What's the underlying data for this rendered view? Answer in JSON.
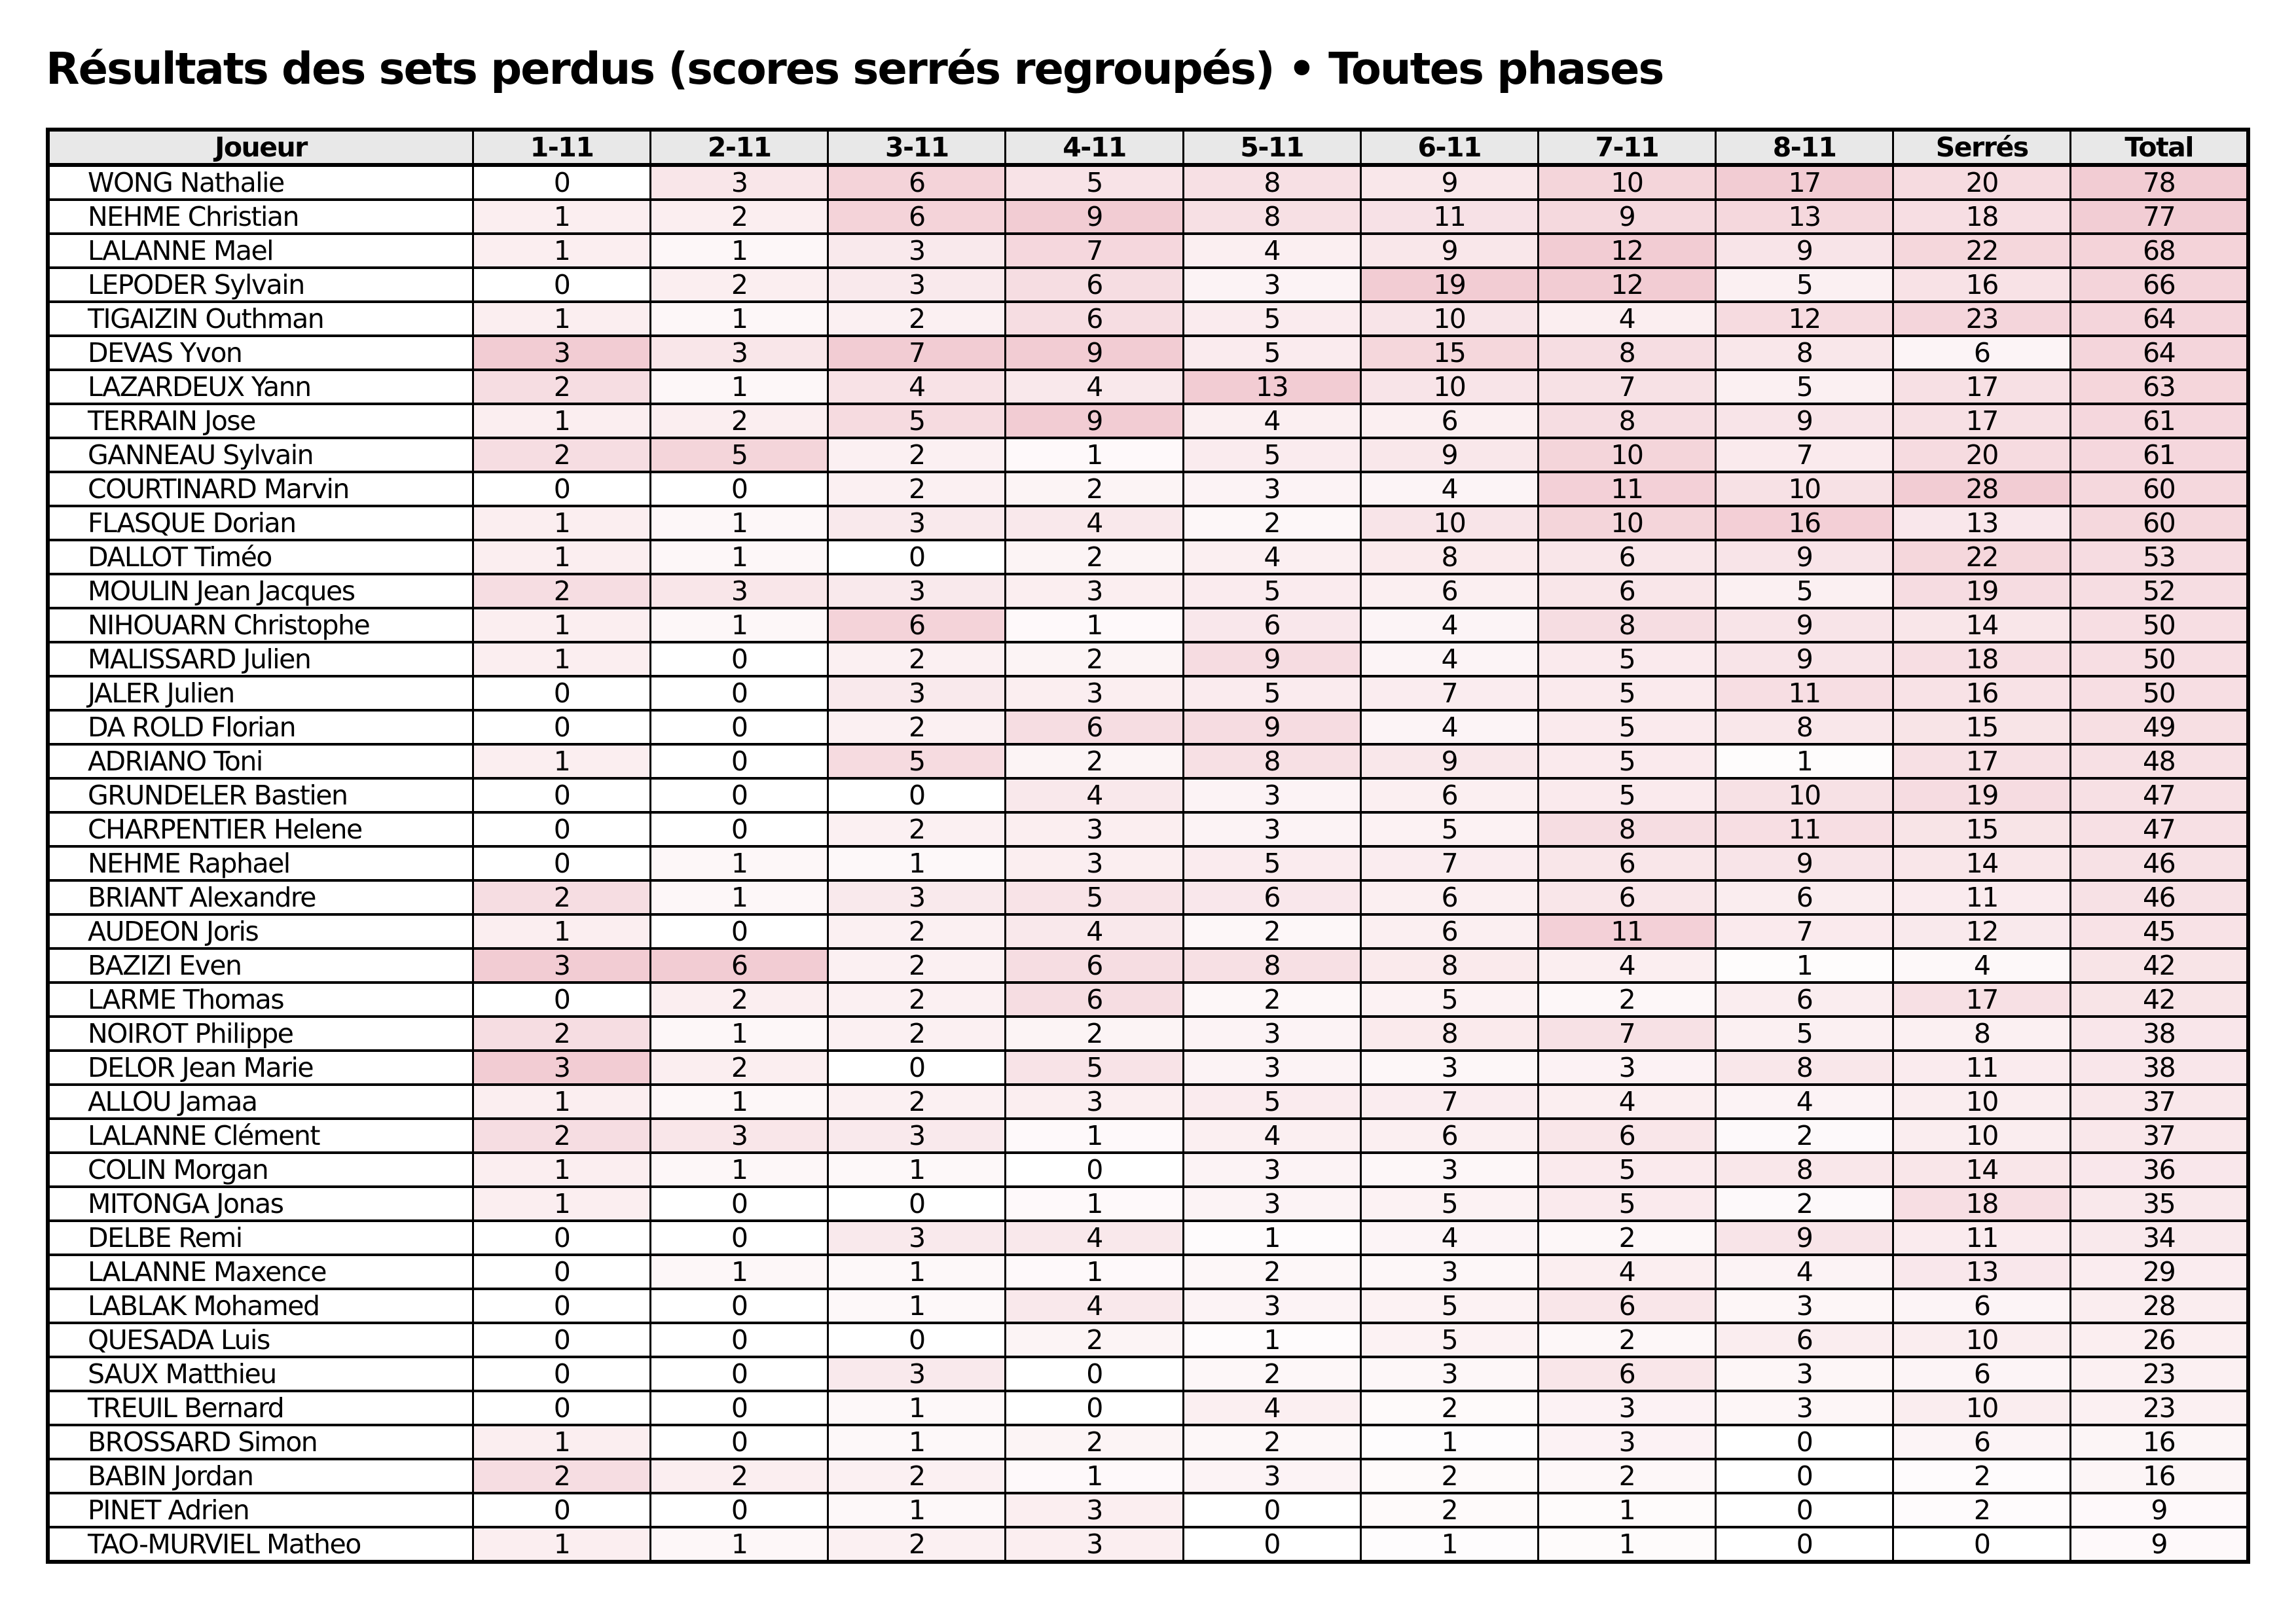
{
  "title": "Résultats des sets perdus (scores serrés regroupés) • Toutes phases",
  "colors": {
    "header_bg": "#e8e8e8",
    "heat_max": "#f2ccd3",
    "border": "#000000",
    "background": "#ffffff"
  },
  "chart_data": {
    "type": "table",
    "title": "Résultats des sets perdus (scores serrés regroupés) • Toutes phases",
    "columns": [
      "Joueur",
      "1-11",
      "2-11",
      "3-11",
      "4-11",
      "5-11",
      "6-11",
      "7-11",
      "8-11",
      "Serrés",
      "Total"
    ],
    "heatmap": "per-column, white to heat_max proportional to value / column max",
    "rows": [
      {
        "name": "WONG Nathalie",
        "values": [
          0,
          3,
          6,
          5,
          8,
          9,
          10,
          17,
          20,
          78
        ]
      },
      {
        "name": "NEHME Christian",
        "values": [
          1,
          2,
          6,
          9,
          8,
          11,
          9,
          13,
          18,
          77
        ]
      },
      {
        "name": "LALANNE Mael",
        "values": [
          1,
          1,
          3,
          7,
          4,
          9,
          12,
          9,
          22,
          68
        ]
      },
      {
        "name": "LEPODER Sylvain",
        "values": [
          0,
          2,
          3,
          6,
          3,
          19,
          12,
          5,
          16,
          66
        ]
      },
      {
        "name": "TIGAIZIN Outhman",
        "values": [
          1,
          1,
          2,
          6,
          5,
          10,
          4,
          12,
          23,
          64
        ]
      },
      {
        "name": "DEVAS Yvon",
        "values": [
          3,
          3,
          7,
          9,
          5,
          15,
          8,
          8,
          6,
          64
        ]
      },
      {
        "name": "LAZARDEUX Yann",
        "values": [
          2,
          1,
          4,
          4,
          13,
          10,
          7,
          5,
          17,
          63
        ]
      },
      {
        "name": "TERRAIN Jose",
        "values": [
          1,
          2,
          5,
          9,
          4,
          6,
          8,
          9,
          17,
          61
        ]
      },
      {
        "name": "GANNEAU Sylvain",
        "values": [
          2,
          5,
          2,
          1,
          5,
          9,
          10,
          7,
          20,
          61
        ]
      },
      {
        "name": "COURTINARD Marvin",
        "values": [
          0,
          0,
          2,
          2,
          3,
          4,
          11,
          10,
          28,
          60
        ]
      },
      {
        "name": "FLASQUE Dorian",
        "values": [
          1,
          1,
          3,
          4,
          2,
          10,
          10,
          16,
          13,
          60
        ]
      },
      {
        "name": "DALLOT Timéo",
        "values": [
          1,
          1,
          0,
          2,
          4,
          8,
          6,
          9,
          22,
          53
        ]
      },
      {
        "name": "MOULIN Jean Jacques",
        "values": [
          2,
          3,
          3,
          3,
          5,
          6,
          6,
          5,
          19,
          52
        ]
      },
      {
        "name": "NIHOUARN Christophe",
        "values": [
          1,
          1,
          6,
          1,
          6,
          4,
          8,
          9,
          14,
          50
        ]
      },
      {
        "name": "MALISSARD Julien",
        "values": [
          1,
          0,
          2,
          2,
          9,
          4,
          5,
          9,
          18,
          50
        ]
      },
      {
        "name": "JALER Julien",
        "values": [
          0,
          0,
          3,
          3,
          5,
          7,
          5,
          11,
          16,
          50
        ]
      },
      {
        "name": "DA ROLD Florian",
        "values": [
          0,
          0,
          2,
          6,
          9,
          4,
          5,
          8,
          15,
          49
        ]
      },
      {
        "name": "ADRIANO Toni",
        "values": [
          1,
          0,
          5,
          2,
          8,
          9,
          5,
          1,
          17,
          48
        ]
      },
      {
        "name": "GRUNDELER Bastien",
        "values": [
          0,
          0,
          0,
          4,
          3,
          6,
          5,
          10,
          19,
          47
        ]
      },
      {
        "name": "CHARPENTIER Helene",
        "values": [
          0,
          0,
          2,
          3,
          3,
          5,
          8,
          11,
          15,
          47
        ]
      },
      {
        "name": "NEHME Raphael",
        "values": [
          0,
          1,
          1,
          3,
          5,
          7,
          6,
          9,
          14,
          46
        ]
      },
      {
        "name": "BRIANT Alexandre",
        "values": [
          2,
          1,
          3,
          5,
          6,
          6,
          6,
          6,
          11,
          46
        ]
      },
      {
        "name": "AUDEON Joris",
        "values": [
          1,
          0,
          2,
          4,
          2,
          6,
          11,
          7,
          12,
          45
        ]
      },
      {
        "name": "BAZIZI Even",
        "values": [
          3,
          6,
          2,
          6,
          8,
          8,
          4,
          1,
          4,
          42
        ]
      },
      {
        "name": "LARME Thomas",
        "values": [
          0,
          2,
          2,
          6,
          2,
          5,
          2,
          6,
          17,
          42
        ]
      },
      {
        "name": "NOIROT Philippe",
        "values": [
          2,
          1,
          2,
          2,
          3,
          8,
          7,
          5,
          8,
          38
        ]
      },
      {
        "name": "DELOR Jean Marie",
        "values": [
          3,
          2,
          0,
          5,
          3,
          3,
          3,
          8,
          11,
          38
        ]
      },
      {
        "name": "ALLOU Jamaa",
        "values": [
          1,
          1,
          2,
          3,
          5,
          7,
          4,
          4,
          10,
          37
        ]
      },
      {
        "name": "LALANNE Clément",
        "values": [
          2,
          3,
          3,
          1,
          4,
          6,
          6,
          2,
          10,
          37
        ]
      },
      {
        "name": "COLIN Morgan",
        "values": [
          1,
          1,
          1,
          0,
          3,
          3,
          5,
          8,
          14,
          36
        ]
      },
      {
        "name": "MITONGA Jonas",
        "values": [
          1,
          0,
          0,
          1,
          3,
          5,
          5,
          2,
          18,
          35
        ]
      },
      {
        "name": "DELBE Remi",
        "values": [
          0,
          0,
          3,
          4,
          1,
          4,
          2,
          9,
          11,
          34
        ]
      },
      {
        "name": "LALANNE Maxence",
        "values": [
          0,
          1,
          1,
          1,
          2,
          3,
          4,
          4,
          13,
          29
        ]
      },
      {
        "name": "LABLAK Mohamed",
        "values": [
          0,
          0,
          1,
          4,
          3,
          5,
          6,
          3,
          6,
          28
        ]
      },
      {
        "name": "QUESADA Luis",
        "values": [
          0,
          0,
          0,
          2,
          1,
          5,
          2,
          6,
          10,
          26
        ]
      },
      {
        "name": "SAUX Matthieu",
        "values": [
          0,
          0,
          3,
          0,
          2,
          3,
          6,
          3,
          6,
          23
        ]
      },
      {
        "name": "TREUIL Bernard",
        "values": [
          0,
          0,
          1,
          0,
          4,
          2,
          3,
          3,
          10,
          23
        ]
      },
      {
        "name": "BROSSARD Simon",
        "values": [
          1,
          0,
          1,
          2,
          2,
          1,
          3,
          0,
          6,
          16
        ]
      },
      {
        "name": "BABIN Jordan",
        "values": [
          2,
          2,
          2,
          1,
          3,
          2,
          2,
          0,
          2,
          16
        ]
      },
      {
        "name": "PINET Adrien",
        "values": [
          0,
          0,
          1,
          3,
          0,
          2,
          1,
          0,
          2,
          9
        ]
      },
      {
        "name": "TAO-MURVIEL Matheo",
        "values": [
          1,
          1,
          2,
          3,
          0,
          1,
          1,
          0,
          0,
          9
        ]
      }
    ]
  }
}
